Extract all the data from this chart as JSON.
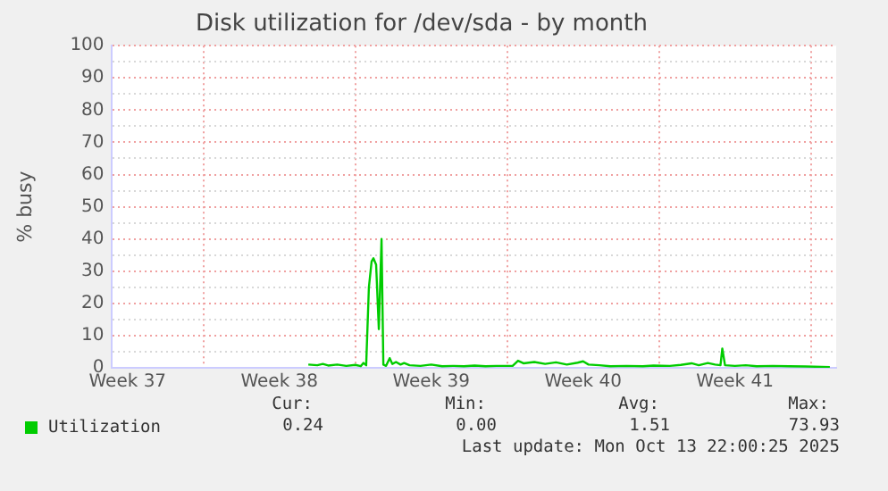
{
  "chart_data": {
    "type": "line",
    "title": "Disk utilization for /dev/sda - by month",
    "ylabel": "% busy",
    "x": [
      "2025-09-19T20:00",
      "2025-09-20T06:00",
      "2025-09-20T12:00",
      "2025-09-20T18:00",
      "2025-09-21T04:00",
      "2025-09-21T14:00",
      "2025-09-22T00:00",
      "2025-09-22T06:00",
      "2025-09-22T09:00",
      "2025-09-22T12:00",
      "2025-09-22T15:00",
      "2025-09-22T18:00",
      "2025-09-22T20:00",
      "2025-09-22T23:00",
      "2025-09-23T02:00",
      "2025-09-23T05:00",
      "2025-09-23T07:00",
      "2025-09-23T10:00",
      "2025-09-23T14:00",
      "2025-09-23T17:00",
      "2025-09-23T21:00",
      "2025-09-24T02:00",
      "2025-09-24T06:00",
      "2025-09-24T12:00",
      "2025-09-25T00:00",
      "2025-09-25T12:00",
      "2025-09-26T00:00",
      "2025-09-26T12:00",
      "2025-09-27T00:00",
      "2025-09-27T12:00",
      "2025-09-28T00:00",
      "2025-09-28T12:00",
      "2025-09-29T06:00",
      "2025-09-29T12:00",
      "2025-09-29T18:00",
      "2025-09-30T06:00",
      "2025-09-30T18:00",
      "2025-10-01T06:00",
      "2025-10-01T18:00",
      "2025-10-02T06:00",
      "2025-10-02T12:00",
      "2025-10-02T18:00",
      "2025-10-03T06:00",
      "2025-10-03T18:00",
      "2025-10-04T12:00",
      "2025-10-05T06:00",
      "2025-10-05T18:00",
      "2025-10-06T12:00",
      "2025-10-07T00:00",
      "2025-10-07T12:00",
      "2025-10-07T20:00",
      "2025-10-08T06:00",
      "2025-10-08T14:00",
      "2025-10-08T20:00",
      "2025-10-08T22:00",
      "2025-10-09T01:00",
      "2025-10-09T12:00",
      "2025-10-10T00:00",
      "2025-10-10T12:00",
      "2025-10-11T06:00",
      "2025-10-12T00:00",
      "2025-10-12T18:00",
      "2025-10-13T21:00"
    ],
    "series": [
      {
        "name": "Utilization",
        "color": "#00cc00",
        "values": [
          1.0,
          0.8,
          1.2,
          0.7,
          1.0,
          0.6,
          0.9,
          0.5,
          1.5,
          0.8,
          25,
          33,
          34,
          32,
          12,
          40,
          1,
          0.6,
          3,
          1.2,
          1.8,
          1.0,
          1.5,
          0.8,
          0.6,
          1.0,
          0.5,
          0.6,
          0.5,
          0.7,
          0.5,
          0.6,
          0.6,
          2.2,
          1.4,
          1.8,
          1.2,
          1.7,
          1.0,
          1.6,
          2.0,
          1.0,
          0.8,
          0.5,
          0.6,
          0.5,
          0.7,
          0.6,
          0.9,
          1.4,
          0.8,
          1.5,
          1.0,
          0.8,
          6,
          0.8,
          0.6,
          0.8,
          0.5,
          0.6,
          0.5,
          0.4,
          0.24
        ]
      }
    ],
    "xlim": [
      "2025-09-10T18:00",
      "2025-10-14T04:00"
    ],
    "xticks": [
      {
        "value": "2025-09-11T12:00",
        "label": "Week 37"
      },
      {
        "value": "2025-09-15T00:00",
        "label": null
      },
      {
        "value": "2025-09-18T12:00",
        "label": "Week 38"
      },
      {
        "value": "2025-09-22T00:00",
        "label": null
      },
      {
        "value": "2025-09-25T12:00",
        "label": "Week 39"
      },
      {
        "value": "2025-09-29T00:00",
        "label": null
      },
      {
        "value": "2025-10-02T12:00",
        "label": "Week 40"
      },
      {
        "value": "2025-10-06T00:00",
        "label": null
      },
      {
        "value": "2025-10-09T12:00",
        "label": "Week 41"
      },
      {
        "value": "2025-10-13T00:00",
        "label": null
      }
    ],
    "ylim": [
      0,
      100
    ],
    "yticks": [
      0,
      {
        "value": 5,
        "label": null
      },
      10,
      {
        "value": 15,
        "label": null
      },
      20,
      {
        "value": 25,
        "label": null
      },
      30,
      {
        "value": 35,
        "label": null
      },
      40,
      {
        "value": 45,
        "label": null
      },
      50,
      {
        "value": 55,
        "label": null
      },
      60,
      {
        "value": 65,
        "label": null
      },
      70,
      {
        "value": 75,
        "label": null
      },
      80,
      {
        "value": 85,
        "label": null
      },
      90,
      {
        "value": 95,
        "label": null
      },
      100
    ],
    "grid": true,
    "legend": "bottom left",
    "marker": "none",
    "line_style": "solid",
    "annotations": [
      "Cur:",
      "Min:",
      "Avg:",
      "Max:",
      "0.24",
      "0.00",
      "1.51",
      "73.93",
      "Last update: Mon Oct 13 22:00:25 2025"
    ]
  }
}
